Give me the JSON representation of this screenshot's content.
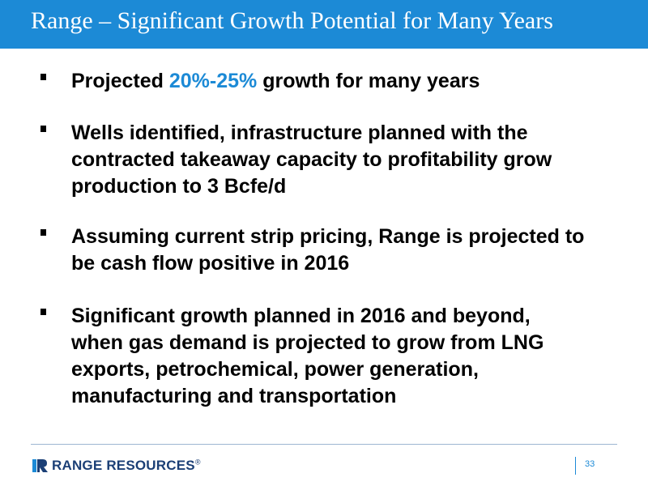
{
  "header": {
    "title": "Range – Significant Growth Potential for Many Years"
  },
  "bullets": [
    {
      "before": "Projected ",
      "highlight": "20%-25%",
      "after": " growth for many years"
    },
    {
      "lines": [
        "Wells identified, infrastructure planned with the",
        "contracted takeaway capacity to profitability grow",
        "production to 3 Bcfe/d"
      ]
    },
    {
      "lines": [
        "Assuming current strip pricing, Range is projected to",
        "be cash flow positive in 2016"
      ]
    },
    {
      "lines": [
        "Significant growth planned in 2016 and beyond,",
        "when gas demand is projected to grow from LNG",
        "exports, petrochemical, power generation,",
        "manufacturing and transportation"
      ]
    }
  ],
  "footer": {
    "logo_text": "RANGE RESOURCES",
    "logo_mark": "®",
    "page_number": "33"
  },
  "colors": {
    "accent": "#1C8AD6",
    "brand_navy": "#1B3F76"
  }
}
